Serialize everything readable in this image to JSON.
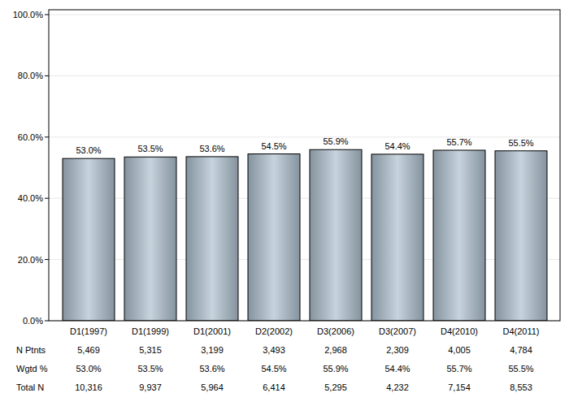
{
  "chart_data": {
    "type": "bar",
    "categories": [
      "D1(1997)",
      "D1(1999)",
      "D1(2001)",
      "D2(2002)",
      "D3(2006)",
      "D3(2007)",
      "D4(2010)",
      "D4(2011)"
    ],
    "values": [
      53.0,
      53.5,
      53.6,
      54.5,
      55.9,
      54.4,
      55.7,
      55.5
    ],
    "value_labels": [
      "53.0%",
      "53.5%",
      "53.6%",
      "54.5%",
      "55.9%",
      "54.4%",
      "55.7%",
      "55.5%"
    ],
    "color": "#a9bccb",
    "ylim": [
      0,
      100
    ],
    "yticks": [
      {
        "value": 0,
        "label": "0.0%"
      },
      {
        "value": 20,
        "label": "20.0%"
      },
      {
        "value": 40,
        "label": "40.0%"
      },
      {
        "value": 60,
        "label": "60.0%"
      },
      {
        "value": 80,
        "label": "80.0%"
      },
      {
        "value": 100,
        "label": "100.0%"
      }
    ],
    "grid": true,
    "data_labels": true
  },
  "table": {
    "rows": [
      {
        "label": "N Ptnts",
        "cells": [
          "5,469",
          "5,315",
          "3,199",
          "3,493",
          "2,968",
          "2,309",
          "4,005",
          "4,784"
        ]
      },
      {
        "label": "Wgtd %",
        "cells": [
          "53.0%",
          "53.5%",
          "53.6%",
          "54.5%",
          "55.9%",
          "54.4%",
          "55.7%",
          "55.5%"
        ]
      },
      {
        "label": "Total N",
        "cells": [
          "10,316",
          "9,937",
          "5,964",
          "6,414",
          "5,295",
          "4,232",
          "7,154",
          "8,553"
        ]
      }
    ]
  }
}
